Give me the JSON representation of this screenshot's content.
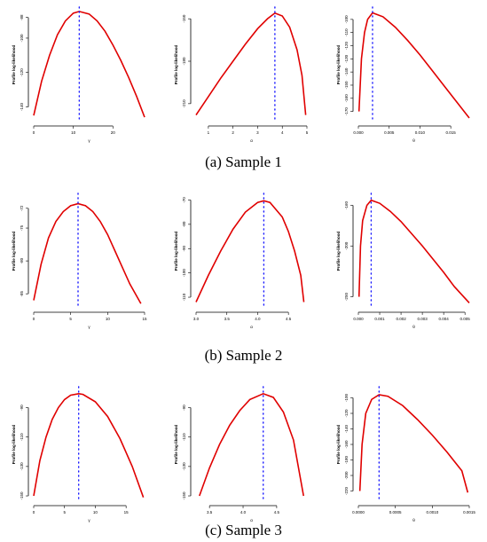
{
  "captions": [
    "(a) Sample 1",
    "(b) Sample 2",
    "(c) Sample 3"
  ],
  "chart_data": [
    {
      "type": "line",
      "sample": 1,
      "xlabel": "γ",
      "ylabel": "Profile log-likelihood",
      "xlim": [
        0,
        28
      ],
      "ylim": [
        -148,
        -83
      ],
      "xticks": [
        0,
        10,
        20
      ],
      "yticks": [
        -140,
        -120,
        -100,
        -88
      ],
      "ytick_labels": [
        "-140",
        "-120",
        "-100",
        "-88"
      ],
      "mle": 11.5,
      "series": [
        {
          "x": [
            0,
            2,
            4,
            6,
            8,
            10,
            11.5,
            14,
            16,
            18,
            20,
            22,
            24,
            26,
            28
          ],
          "y": [
            -145,
            -125,
            -110,
            -98,
            -90,
            -85.5,
            -84.5,
            -86,
            -90,
            -96,
            -104,
            -113,
            -123,
            -134,
            -146
          ]
        }
      ]
    },
    {
      "type": "line",
      "sample": 1,
      "xlabel": "α",
      "ylabel": "Profile log-likelihood",
      "xlim": [
        0.5,
        5.0
      ],
      "ylim": [
        -222,
        -143
      ],
      "xticks": [
        1,
        2,
        3,
        4,
        5
      ],
      "yticks": [
        -210,
        -180,
        -150
      ],
      "ytick_labels": [
        "-210",
        "-180",
        "-150"
      ],
      "mle": 3.7,
      "series": [
        {
          "x": [
            0.5,
            1.0,
            1.5,
            2.0,
            2.5,
            3.0,
            3.4,
            3.7,
            4.0,
            4.3,
            4.6,
            4.8,
            4.95
          ],
          "y": [
            -218,
            -205,
            -192,
            -180,
            -168,
            -157,
            -150,
            -146,
            -148,
            -156,
            -172,
            -190,
            -218
          ]
        }
      ]
    },
    {
      "type": "line",
      "sample": 1,
      "xlabel": "θ",
      "ylabel": "Profile log-likelihood",
      "xlim": [
        0,
        0.018
      ],
      "ylim": [
        -177,
        -92
      ],
      "xticks": [
        0,
        0.005,
        0.01,
        0.015
      ],
      "xtick_labels": [
        "0.000",
        "0.005",
        "0.010",
        "0.015"
      ],
      "yticks": [
        -170,
        -160,
        -150,
        -140,
        -130,
        -120,
        -110,
        -100
      ],
      "ytick_labels": [
        "-170",
        "-160",
        "-150",
        "-140",
        "-130",
        "-120",
        "-110",
        "-100"
      ],
      "mle": 0.0023,
      "series": [
        {
          "x": [
            0.0001,
            0.0005,
            0.001,
            0.0015,
            0.0023,
            0.004,
            0.006,
            0.008,
            0.01,
            0.012,
            0.014,
            0.016,
            0.018
          ],
          "y": [
            -170,
            -130,
            -110,
            -100,
            -95,
            -98,
            -106,
            -116,
            -127,
            -139,
            -151,
            -163,
            -175
          ]
        }
      ]
    },
    {
      "type": "line",
      "sample": 2,
      "xlabel": "γ",
      "ylabel": "Profile log-likelihood",
      "xlim": [
        0,
        15
      ],
      "ylim": [
        -87,
        -70
      ],
      "xticks": [
        0,
        5,
        10,
        15
      ],
      "yticks": [
        -85,
        -80,
        -75,
        -72
      ],
      "ytick_labels": [
        "-85",
        "-80",
        "-75",
        "-72"
      ],
      "mle": 6.0,
      "series": [
        {
          "x": [
            0,
            1,
            2,
            3,
            4,
            5,
            6,
            7,
            8,
            9,
            10,
            11,
            12,
            13,
            14.5
          ],
          "y": [
            -86,
            -80.5,
            -76.5,
            -74,
            -72.5,
            -71.6,
            -71.3,
            -71.6,
            -72.5,
            -74,
            -76,
            -78.5,
            -81,
            -83.5,
            -86.5
          ]
        }
      ]
    },
    {
      "type": "line",
      "sample": 2,
      "xlabel": "α",
      "ylabel": "Profile log-likelihood",
      "xlim": [
        3.0,
        4.8
      ],
      "ylim": [
        -114,
        -68
      ],
      "xticks": [
        3.0,
        3.5,
        4.0,
        4.5
      ],
      "xtick_labels": [
        "3.0",
        "3.5",
        "4.0",
        "4.5"
      ],
      "yticks": [
        -110,
        -100,
        -90,
        -80,
        -70
      ],
      "ytick_labels": [
        "-110",
        "-100",
        "-90",
        "-80",
        "-70"
      ],
      "mle": 4.1,
      "series": [
        {
          "x": [
            3.0,
            3.2,
            3.4,
            3.6,
            3.8,
            4.0,
            4.1,
            4.2,
            4.4,
            4.5,
            4.6,
            4.7,
            4.75
          ],
          "y": [
            -112,
            -101,
            -91,
            -82,
            -75,
            -71,
            -70.3,
            -71,
            -77,
            -83,
            -91,
            -101,
            -112
          ]
        }
      ]
    },
    {
      "type": "line",
      "sample": 2,
      "xlabel": "θ",
      "ylabel": "Profile log-likelihood",
      "xlim": [
        0,
        0.0052
      ],
      "ylim": [
        -260,
        -150
      ],
      "xticks": [
        0,
        0.001,
        0.002,
        0.003,
        0.004,
        0.005
      ],
      "xtick_labels": [
        "0.000",
        "0.001",
        "0.002",
        "0.003",
        "0.004",
        "0.005"
      ],
      "yticks": [
        -250,
        -200,
        -160
      ],
      "ytick_labels": [
        "-250",
        "-200",
        "-160"
      ],
      "mle": 0.0006,
      "series": [
        {
          "x": [
            3e-05,
            0.0001,
            0.0002,
            0.0004,
            0.0006,
            0.001,
            0.0015,
            0.002,
            0.0025,
            0.003,
            0.0035,
            0.004,
            0.0045,
            0.0052
          ],
          "y": [
            -250,
            -200,
            -175,
            -160,
            -155,
            -158,
            -166,
            -176,
            -188,
            -200,
            -213,
            -226,
            -240,
            -256
          ]
        }
      ]
    },
    {
      "type": "line",
      "sample": 3,
      "xlabel": "γ",
      "ylabel": "Profile log-likelihood",
      "xlim": [
        0,
        18
      ],
      "ylim": [
        -153,
        -77
      ],
      "xticks": [
        0,
        5,
        10,
        15
      ],
      "yticks": [
        -150,
        -130,
        -110,
        -90
      ],
      "ytick_labels": [
        "-150",
        "-130",
        "-110",
        "-90"
      ],
      "mle": 7.3,
      "series": [
        {
          "x": [
            0,
            1,
            2,
            3,
            4,
            5,
            6,
            7.3,
            8,
            10,
            12,
            14,
            16,
            17.8
          ],
          "y": [
            -150,
            -126,
            -110,
            -98,
            -90,
            -84.5,
            -81.5,
            -80.5,
            -81,
            -86,
            -96,
            -111,
            -130,
            -151
          ]
        }
      ]
    },
    {
      "type": "line",
      "sample": 3,
      "xlabel": "α",
      "ylabel": "Profile log-likelihood",
      "xlim": [
        3.3,
        4.95
      ],
      "ylim": [
        -153,
        -77
      ],
      "xticks": [
        3.5,
        4.0,
        4.5
      ],
      "xtick_labels": [
        "3.5",
        "4.0",
        "4.5"
      ],
      "yticks": [
        -150,
        -130,
        -110,
        -90
      ],
      "ytick_labels": [
        "-150",
        "-130",
        "-110",
        "-90"
      ],
      "mle": 4.3,
      "series": [
        {
          "x": [
            3.35,
            3.5,
            3.65,
            3.8,
            3.95,
            4.1,
            4.3,
            4.45,
            4.6,
            4.75,
            4.9
          ],
          "y": [
            -150,
            -131,
            -115,
            -102,
            -92,
            -84.5,
            -80.5,
            -83,
            -93,
            -112,
            -150
          ]
        }
      ]
    },
    {
      "type": "line",
      "sample": 3,
      "xlabel": "θ",
      "ylabel": "Profile log-likelihood",
      "xlim": [
        0,
        0.0015
      ],
      "ylim": [
        -232,
        -88
      ],
      "xticks": [
        0,
        0.0005,
        0.001,
        0.0015
      ],
      "xtick_labels": [
        "0.0000",
        "0.0005",
        "0.0010",
        "0.0015"
      ],
      "yticks": [
        -220,
        -200,
        -180,
        -160,
        -140,
        -120,
        -100
      ],
      "ytick_labels": [
        "-220",
        "-200",
        "-180",
        "-160",
        "-140",
        "-120",
        "-100"
      ],
      "mle": 0.00028,
      "series": [
        {
          "x": [
            2e-05,
            5e-05,
            0.0001,
            0.00018,
            0.00028,
            0.0004,
            0.0006,
            0.0008,
            0.001,
            0.0012,
            0.0014,
            0.00148
          ],
          "y": [
            -220,
            -160,
            -120,
            -102,
            -96,
            -98,
            -110,
            -128,
            -148,
            -170,
            -194,
            -222
          ]
        }
      ]
    }
  ]
}
